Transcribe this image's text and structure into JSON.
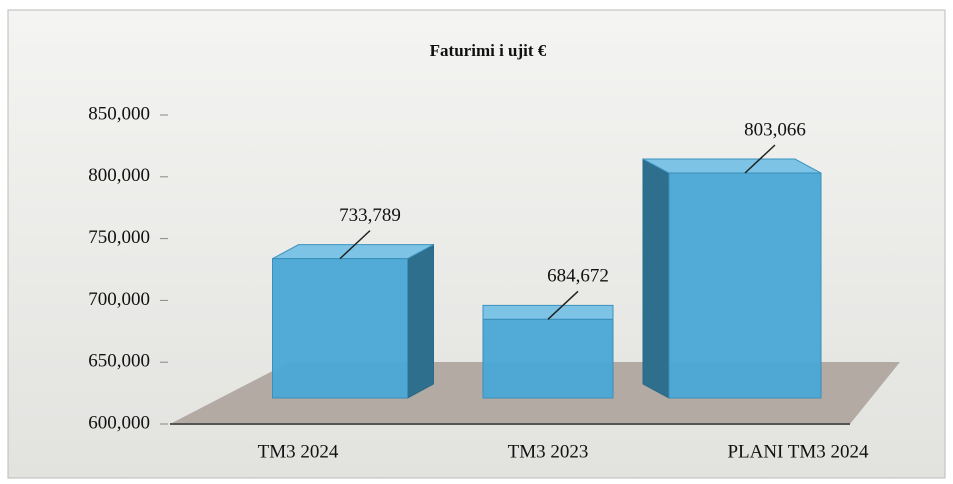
{
  "chart_data": {
    "type": "bar3d",
    "title": "Faturimi i ujit €",
    "categories": [
      "TM3 2024",
      "TM3 2023",
      "PLANI TM3 2024"
    ],
    "values": [
      733789,
      684672,
      803066
    ],
    "value_labels": [
      "733,789",
      "684,672",
      "803,066"
    ],
    "color": "#4aa6d6",
    "ylim": [
      600000,
      850000
    ],
    "yticks": [
      {
        "value": 600000,
        "label": "600,000"
      },
      {
        "value": 650000,
        "label": "650,000"
      },
      {
        "value": 700000,
        "label": "700,000"
      },
      {
        "value": 750000,
        "label": "750,000"
      },
      {
        "value": 800000,
        "label": "800,000"
      },
      {
        "value": 850000,
        "label": "850,000"
      }
    ]
  }
}
